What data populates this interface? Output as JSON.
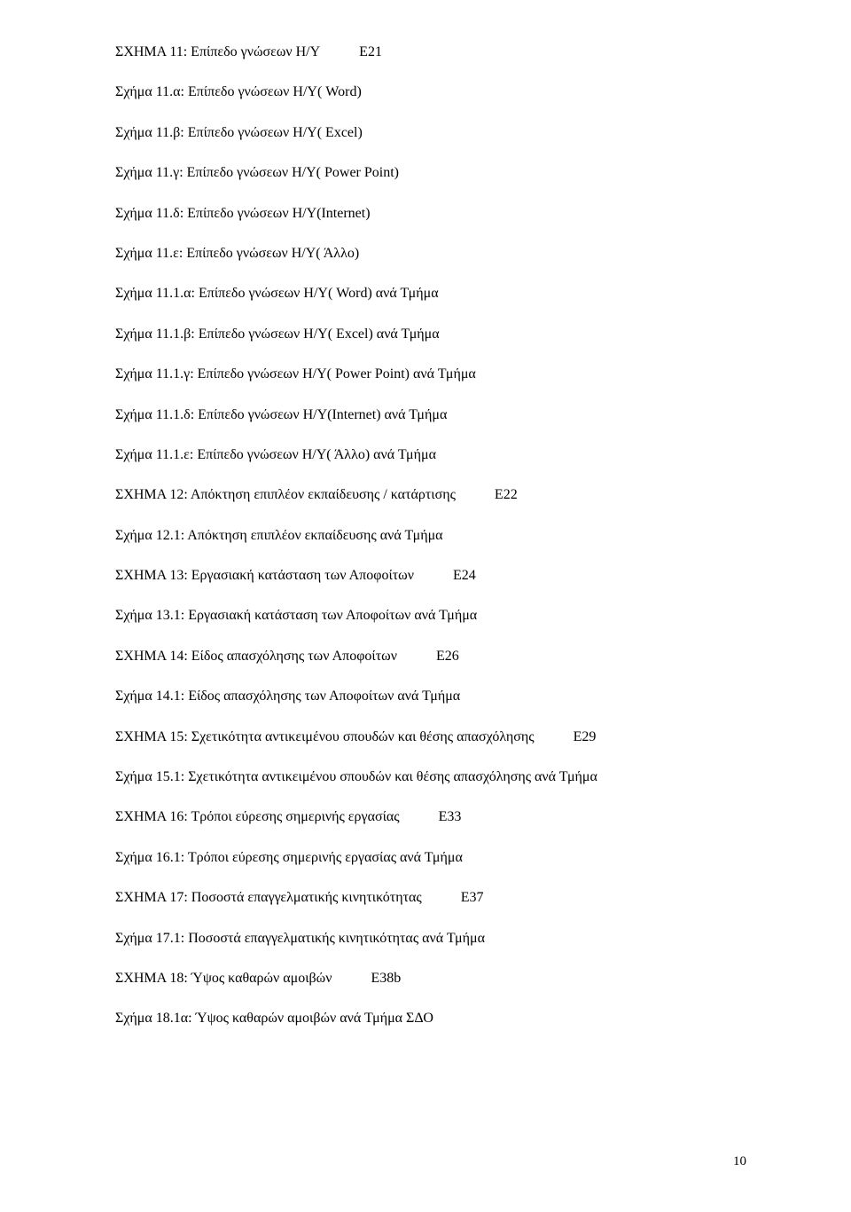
{
  "lines": [
    {
      "a": "ΣΧΗΜΑ 11: Επίπεδο γνώσεων Η/Υ",
      "b": "Ε21",
      "gap": "gap-wide"
    },
    {
      "a": "Σχήμα 11.α: Επίπεδο γνώσεων Η/Υ( Word)"
    },
    {
      "a": "Σχήμα 11.β: Επίπεδο γνώσεων Η/Υ( Excel)"
    },
    {
      "a": "Σχήμα 11.γ: Επίπεδο γνώσεων Η/Υ( Power Point)"
    },
    {
      "a": "Σχήμα 11.δ: Επίπεδο γνώσεων Η/Υ(Internet)"
    },
    {
      "a": "Σχήμα 11.ε: Επίπεδο γνώσεων Η/Υ( Άλλο)"
    },
    {
      "a": "Σχήμα 11.1.α: Επίπεδο γνώσεων Η/Υ( Word) ανά Τμήμα"
    },
    {
      "a": "Σχήμα 11.1.β: Επίπεδο γνώσεων Η/Υ( Excel) ανά Τμήμα"
    },
    {
      "a": "Σχήμα 11.1.γ: Επίπεδο γνώσεων Η/Υ( Power Point) ανά Τμήμα"
    },
    {
      "a": "Σχήμα 11.1.δ: Επίπεδο γνώσεων Η/Υ(Internet) ανά Τμήμα"
    },
    {
      "a": "Σχήμα 11.1.ε: Επίπεδο γνώσεων Η/Υ( Άλλο) ανά Τμήμα"
    },
    {
      "a": "ΣΧΗΜΑ 12: Απόκτηση επιπλέον εκπαίδευσης / κατάρτισης",
      "b": "Ε22",
      "gap": "gap-wide"
    },
    {
      "a": "Σχήμα 12.1: Απόκτηση επιπλέον εκπαίδευσης ανά Τμήμα"
    },
    {
      "a": "ΣΧΗΜΑ 13: Εργασιακή κατάσταση των Αποφοίτων",
      "b": "Ε24",
      "gap": "gap-wide"
    },
    {
      "a": "Σχήμα 13.1: Εργασιακή κατάσταση των Αποφοίτων ανά Τμήμα"
    },
    {
      "a": "ΣΧΗΜΑ 14: Είδος απασχόλησης των Αποφοίτων",
      "b": "Ε26",
      "gap": "gap-wide"
    },
    {
      "a": "Σχήμα 14.1: Είδος απασχόλησης των Αποφοίτων ανά Τμήμα"
    },
    {
      "a": "ΣΧΗΜΑ 15: Σχετικότητα αντικειμένου σπουδών και θέσης απασχόλησης",
      "b": "Ε29",
      "gap": "gap-wide"
    },
    {
      "a": "Σχήμα 15.1: Σχετικότητα αντικειμένου σπουδών και θέσης απασχόλησης ανά Τμήμα"
    },
    {
      "a": "ΣΧΗΜΑ 16: Τρόποι εύρεσης σημερινής εργασίας",
      "b": "Ε33",
      "gap": "gap-wide"
    },
    {
      "a": "Σχήμα 16.1: Τρόποι εύρεσης σημερινής εργασίας ανά Τμήμα"
    },
    {
      "a": "ΣΧΗΜΑ 17: Ποσοστά επαγγελματικής κινητικότητας",
      "b": "Ε37",
      "gap": "gap-wide"
    },
    {
      "a": "Σχήμα 17.1: Ποσοστά επαγγελματικής κινητικότητας ανά Τμήμα"
    },
    {
      "a": "ΣΧΗΜΑ 18: Ύψος καθαρών αμοιβών",
      "b": "Ε38b",
      "gap": "gap-wide"
    },
    {
      "a": "Σχήμα 18.1α: Ύψος καθαρών αμοιβών ανά Τμήμα ΣΔΟ"
    }
  ],
  "page_number": "10"
}
